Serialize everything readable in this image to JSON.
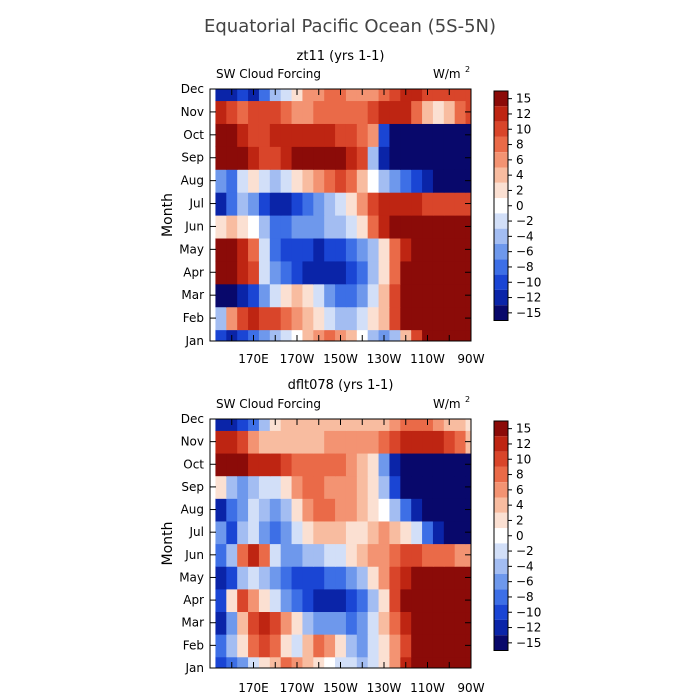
{
  "title": "Equatorial Pacific Ocean (5S-5N)",
  "colors": {
    "palette": [
      "#08086b",
      "#0a24a8",
      "#1a45d4",
      "#3d6fe6",
      "#6e98ec",
      "#a3bdf2",
      "#d2dff8",
      "#ffffff",
      "#fbe0d2",
      "#f8bca0",
      "#f39372",
      "#ea6a48",
      "#d9452a",
      "#be2512",
      "#8b0b08"
    ]
  },
  "chart_data": [
    {
      "type": "heatmap",
      "subtitle": "zt11 (yrs 1-1)",
      "label_left": "SW Cloud Forcing",
      "label_right": "W/m",
      "ylabel": "Month",
      "x": [
        "170E",
        "170W",
        "150W",
        "130W",
        "110W",
        "90W"
      ],
      "y": [
        "Jan",
        "Feb",
        "Mar",
        "Apr",
        "May",
        "Jun",
        "Jul",
        "Aug",
        "Sep",
        "Oct",
        "Nov",
        "Dec"
      ],
      "colorbar_ticks": [
        15,
        12,
        10,
        8,
        6,
        4,
        2,
        0,
        -2,
        -4,
        -6,
        -8,
        -10,
        -12,
        -15
      ],
      "xlim": [
        "150E",
        "90W"
      ],
      "ylim": [
        "Jan",
        "Dec"
      ],
      "longitudes": [
        155,
        160,
        165,
        170,
        175,
        180,
        185,
        190,
        195,
        200,
        205,
        210,
        215,
        220,
        225,
        230,
        235,
        240,
        245,
        250,
        255,
        260,
        265,
        270
      ],
      "months": [
        "Jan",
        "Feb",
        "Mar",
        "Apr",
        "May",
        "Jun",
        "Jul",
        "Aug",
        "Sep",
        "Oct",
        "Nov",
        "Dec"
      ],
      "values": [
        [
          -10,
          -12,
          -10,
          -8,
          -6,
          -4,
          -2,
          0,
          4,
          6,
          8,
          6,
          4,
          0,
          -4,
          -6,
          -4,
          4,
          10,
          15,
          15,
          15,
          15,
          15
        ],
        [
          -4,
          6,
          10,
          12,
          10,
          10,
          8,
          6,
          4,
          2,
          -2,
          -4,
          -4,
          -2,
          2,
          4,
          10,
          15,
          15,
          15,
          15,
          15,
          15,
          15
        ],
        [
          -15,
          -15,
          -12,
          -10,
          -6,
          -2,
          2,
          4,
          2,
          -2,
          -6,
          -8,
          -8,
          -6,
          -2,
          4,
          10,
          15,
          15,
          15,
          15,
          15,
          15,
          15
        ],
        [
          15,
          15,
          12,
          10,
          -2,
          -6,
          -8,
          -10,
          -12,
          -12,
          -12,
          -12,
          -10,
          -8,
          -4,
          2,
          8,
          15,
          15,
          15,
          15,
          15,
          15,
          15
        ],
        [
          15,
          15,
          12,
          8,
          -2,
          -8,
          -10,
          -10,
          -10,
          -12,
          -10,
          -10,
          -8,
          -6,
          -4,
          2,
          8,
          12,
          15,
          15,
          15,
          15,
          15,
          15
        ],
        [
          2,
          4,
          2,
          0,
          -4,
          -8,
          -8,
          -6,
          -6,
          -6,
          -4,
          -4,
          -2,
          2,
          8,
          12,
          15,
          15,
          15,
          15,
          15,
          15,
          15,
          15
        ],
        [
          -12,
          -8,
          -4,
          -6,
          -10,
          -12,
          -12,
          -10,
          -8,
          -6,
          -4,
          -2,
          2,
          6,
          10,
          12,
          12,
          12,
          12,
          10,
          10,
          10,
          10,
          10
        ],
        [
          -6,
          -8,
          -2,
          2,
          -2,
          -4,
          -2,
          2,
          4,
          6,
          8,
          10,
          8,
          4,
          0,
          -4,
          -6,
          -8,
          -10,
          -12,
          -15,
          -15,
          -15,
          -15
        ],
        [
          15,
          15,
          15,
          12,
          10,
          10,
          12,
          15,
          15,
          15,
          15,
          15,
          12,
          10,
          -4,
          -12,
          -15,
          -15,
          -15,
          -15,
          -15,
          -15,
          -15,
          -15
        ],
        [
          15,
          15,
          12,
          10,
          10,
          12,
          12,
          12,
          12,
          12,
          12,
          10,
          10,
          8,
          6,
          -10,
          -15,
          -15,
          -15,
          -15,
          -15,
          -15,
          -15,
          -15
        ],
        [
          12,
          10,
          8,
          10,
          10,
          10,
          8,
          6,
          6,
          8,
          8,
          8,
          8,
          8,
          10,
          12,
          12,
          12,
          8,
          4,
          2,
          4,
          8,
          10
        ],
        [
          -12,
          -12,
          -10,
          -12,
          -8,
          -4,
          -2,
          2,
          6,
          6,
          8,
          8,
          6,
          6,
          6,
          8,
          10,
          12,
          12,
          10,
          10,
          10,
          10,
          10
        ]
      ]
    },
    {
      "type": "heatmap",
      "subtitle": "dflt078 (yrs 1-1)",
      "label_left": "SW Cloud Forcing",
      "label_right": "W/m",
      "ylabel": "Month",
      "x": [
        "170E",
        "170W",
        "150W",
        "130W",
        "110W",
        "90W"
      ],
      "y": [
        "Jan",
        "Feb",
        "Mar",
        "Apr",
        "May",
        "Jun",
        "Jul",
        "Aug",
        "Sep",
        "Oct",
        "Nov",
        "Dec"
      ],
      "colorbar_ticks": [
        15,
        12,
        10,
        8,
        6,
        4,
        2,
        0,
        -2,
        -4,
        -6,
        -8,
        -10,
        -12,
        -15
      ],
      "xlim": [
        "150E",
        "90W"
      ],
      "ylim": [
        "Jan",
        "Dec"
      ],
      "longitudes": [
        155,
        160,
        165,
        170,
        175,
        180,
        185,
        190,
        195,
        200,
        205,
        210,
        215,
        220,
        225,
        230,
        235,
        240,
        245,
        250,
        255,
        260,
        265,
        270
      ],
      "months": [
        "Jan",
        "Feb",
        "Mar",
        "Apr",
        "May",
        "Jun",
        "Jul",
        "Aug",
        "Sep",
        "Oct",
        "Nov",
        "Dec"
      ],
      "values": [
        [
          -10,
          -8,
          -6,
          -2,
          2,
          4,
          8,
          6,
          4,
          2,
          0,
          -2,
          -2,
          -4,
          -2,
          2,
          6,
          12,
          15,
          15,
          15,
          15,
          15,
          15
        ],
        [
          -8,
          -4,
          2,
          8,
          10,
          8,
          2,
          -2,
          4,
          8,
          6,
          2,
          -4,
          -6,
          -2,
          2,
          6,
          10,
          15,
          15,
          15,
          15,
          15,
          15
        ],
        [
          -12,
          -6,
          4,
          10,
          12,
          10,
          6,
          2,
          -4,
          -6,
          -6,
          -6,
          -8,
          -6,
          -2,
          4,
          8,
          12,
          15,
          15,
          15,
          15,
          15,
          15
        ],
        [
          -10,
          2,
          10,
          6,
          2,
          -2,
          -6,
          -8,
          -10,
          -12,
          -12,
          -12,
          -10,
          -8,
          -4,
          2,
          10,
          15,
          15,
          15,
          15,
          15,
          15,
          15
        ],
        [
          -12,
          -10,
          -4,
          -2,
          -4,
          -6,
          -8,
          -10,
          -10,
          -10,
          -8,
          -8,
          -6,
          -4,
          2,
          6,
          10,
          12,
          15,
          15,
          15,
          15,
          15,
          15
        ],
        [
          -8,
          -4,
          8,
          12,
          8,
          -2,
          -6,
          -6,
          -4,
          -4,
          -2,
          -2,
          2,
          4,
          6,
          6,
          8,
          10,
          10,
          8,
          8,
          8,
          6,
          6
        ],
        [
          -6,
          -10,
          -4,
          -2,
          -6,
          -8,
          -6,
          -2,
          2,
          4,
          4,
          4,
          2,
          2,
          4,
          6,
          4,
          2,
          -2,
          -8,
          -12,
          -15,
          -15,
          -15
        ],
        [
          -12,
          -8,
          -6,
          -2,
          -4,
          -6,
          -4,
          2,
          6,
          8,
          8,
          6,
          6,
          4,
          2,
          0,
          -4,
          -8,
          -12,
          -15,
          -15,
          -15,
          -15,
          -15
        ],
        [
          2,
          -4,
          -6,
          -4,
          -2,
          -2,
          2,
          6,
          8,
          8,
          6,
          6,
          6,
          4,
          2,
          -4,
          -10,
          -15,
          -15,
          -15,
          -15,
          -15,
          -15,
          -15
        ],
        [
          15,
          15,
          15,
          12,
          12,
          12,
          10,
          8,
          8,
          8,
          8,
          8,
          6,
          4,
          2,
          -6,
          -12,
          -15,
          -15,
          -15,
          -15,
          -15,
          -15,
          -15
        ],
        [
          12,
          12,
          10,
          6,
          4,
          4,
          4,
          4,
          4,
          4,
          6,
          6,
          6,
          6,
          6,
          8,
          10,
          12,
          12,
          12,
          12,
          10,
          8,
          4
        ],
        [
          -12,
          -12,
          -10,
          -8,
          -4,
          2,
          4,
          4,
          4,
          4,
          4,
          4,
          4,
          4,
          4,
          4,
          6,
          8,
          8,
          8,
          6,
          4,
          4,
          2
        ]
      ]
    }
  ]
}
